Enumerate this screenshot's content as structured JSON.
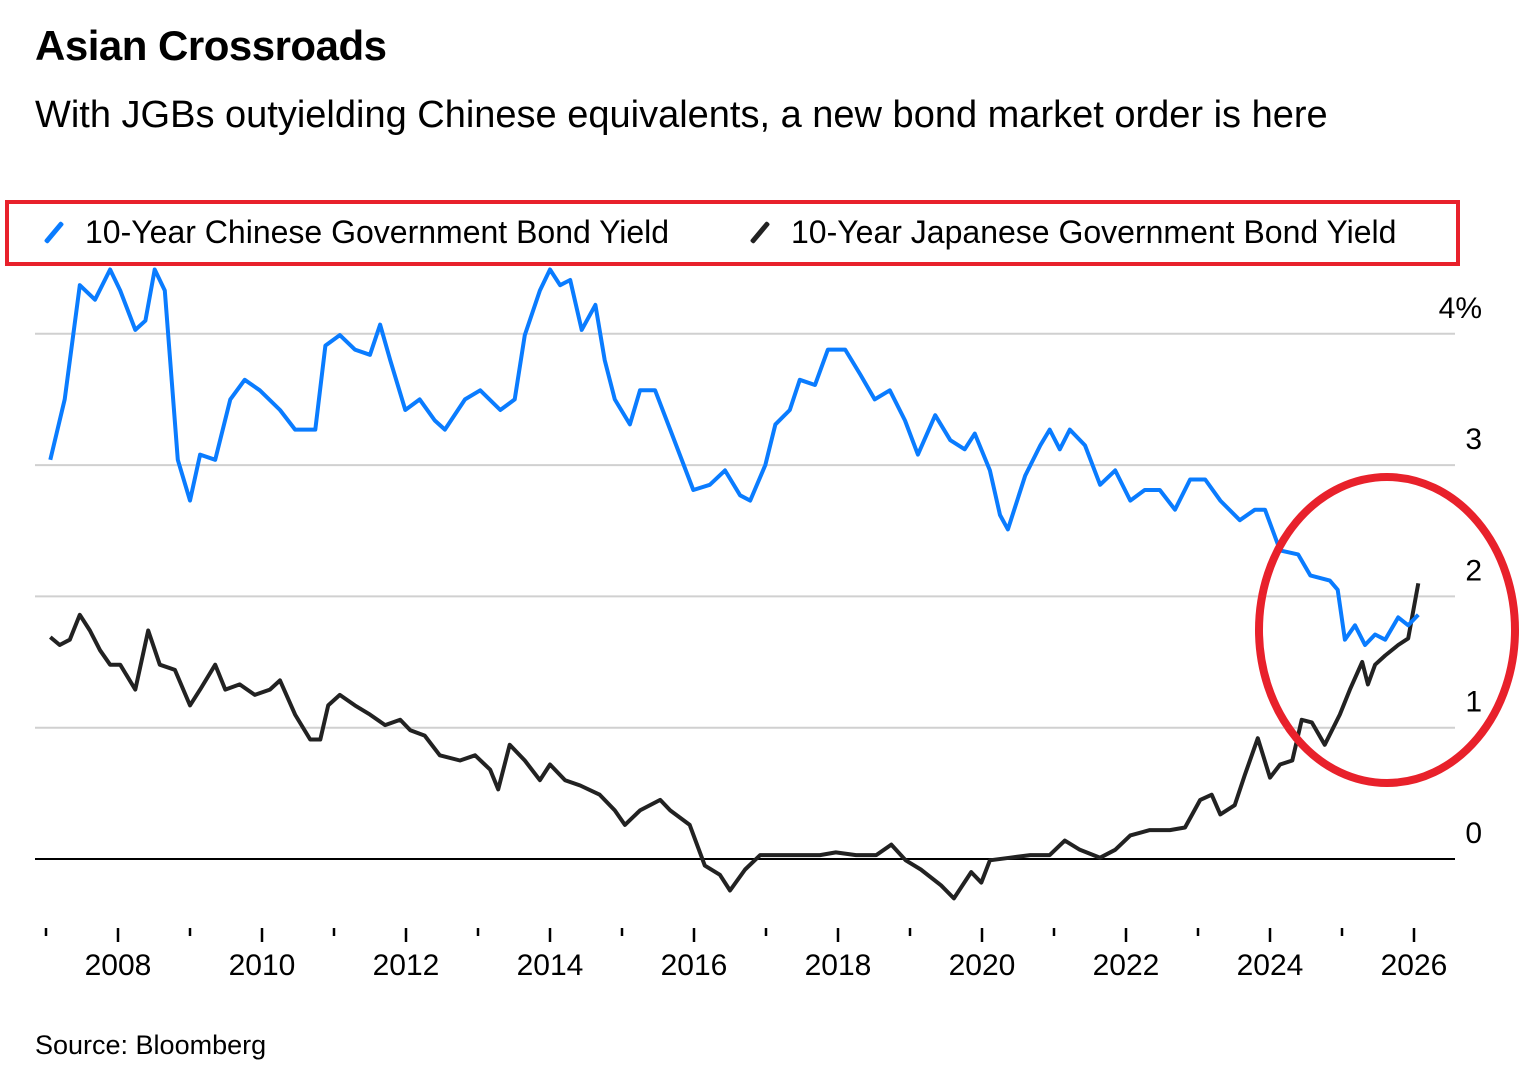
{
  "title": "Asian Crossroads",
  "subtitle": "With JGBs outyielding Chinese equivalents, a new bond market order is here",
  "source": "Source: Bloomberg",
  "colors": {
    "china": "#0a7cff",
    "japan": "#222222",
    "annotation": "#e8212b",
    "grid": "#d0d0d0"
  },
  "chart_data": {
    "type": "line",
    "title": "Asian Crossroads",
    "legend_position": "top",
    "grid": true,
    "xlim": [
      2006.85,
      2026.5
    ],
    "ylim": [
      -0.45,
      4.5
    ],
    "x_ticks": [
      "2008",
      "2010",
      "2012",
      "2014",
      "2016",
      "2018",
      "2020",
      "2022",
      "2024",
      "2026"
    ],
    "y_ticks": [
      {
        "value": 4,
        "label": "4%"
      },
      {
        "value": 3,
        "label": "3"
      },
      {
        "value": 2,
        "label": "2"
      },
      {
        "value": 1,
        "label": "1"
      },
      {
        "value": 0,
        "label": "0"
      }
    ],
    "series": [
      {
        "name": "10-Year Chinese Government Bond Yield",
        "color": "#0a7cff",
        "points": [
          [
            2007.06,
            3.04
          ],
          [
            2007.26,
            3.5
          ],
          [
            2007.47,
            4.37
          ],
          [
            2007.68,
            4.26
          ],
          [
            2007.89,
            4.49
          ],
          [
            2008.03,
            4.33
          ],
          [
            2008.24,
            4.03
          ],
          [
            2008.38,
            4.1
          ],
          [
            2008.51,
            4.49
          ],
          [
            2008.65,
            4.33
          ],
          [
            2008.83,
            3.04
          ],
          [
            2009.0,
            2.73
          ],
          [
            2009.14,
            3.08
          ],
          [
            2009.35,
            3.04
          ],
          [
            2009.56,
            3.5
          ],
          [
            2009.76,
            3.65
          ],
          [
            2009.97,
            3.57
          ],
          [
            2010.25,
            3.42
          ],
          [
            2010.46,
            3.27
          ],
          [
            2010.74,
            3.27
          ],
          [
            2010.88,
            3.91
          ],
          [
            2011.08,
            3.99
          ],
          [
            2011.29,
            3.88
          ],
          [
            2011.5,
            3.84
          ],
          [
            2011.64,
            4.07
          ],
          [
            2011.78,
            3.8
          ],
          [
            2011.99,
            3.42
          ],
          [
            2012.19,
            3.5
          ],
          [
            2012.4,
            3.34
          ],
          [
            2012.54,
            3.27
          ],
          [
            2012.82,
            3.5
          ],
          [
            2013.03,
            3.57
          ],
          [
            2013.31,
            3.42
          ],
          [
            2013.51,
            3.5
          ],
          [
            2013.65,
            3.99
          ],
          [
            2013.86,
            4.33
          ],
          [
            2014.0,
            4.49
          ],
          [
            2014.14,
            4.37
          ],
          [
            2014.28,
            4.41
          ],
          [
            2014.44,
            4.03
          ],
          [
            2014.63,
            4.22
          ],
          [
            2014.76,
            3.8
          ],
          [
            2014.9,
            3.5
          ],
          [
            2015.11,
            3.31
          ],
          [
            2015.25,
            3.57
          ],
          [
            2015.46,
            3.57
          ],
          [
            2015.67,
            3.27
          ],
          [
            2015.99,
            2.81
          ],
          [
            2016.22,
            2.85
          ],
          [
            2016.43,
            2.96
          ],
          [
            2016.64,
            2.77
          ],
          [
            2016.78,
            2.73
          ],
          [
            2016.99,
            3.0
          ],
          [
            2017.13,
            3.31
          ],
          [
            2017.33,
            3.42
          ],
          [
            2017.47,
            3.65
          ],
          [
            2017.68,
            3.61
          ],
          [
            2017.86,
            3.88
          ],
          [
            2018.1,
            3.88
          ],
          [
            2018.31,
            3.69
          ],
          [
            2018.51,
            3.5
          ],
          [
            2018.72,
            3.57
          ],
          [
            2018.93,
            3.34
          ],
          [
            2019.11,
            3.08
          ],
          [
            2019.35,
            3.38
          ],
          [
            2019.56,
            3.19
          ],
          [
            2019.76,
            3.12
          ],
          [
            2019.9,
            3.24
          ],
          [
            2020.11,
            2.96
          ],
          [
            2020.25,
            2.62
          ],
          [
            2020.36,
            2.51
          ],
          [
            2020.6,
            2.92
          ],
          [
            2020.81,
            3.15
          ],
          [
            2020.94,
            3.27
          ],
          [
            2021.08,
            3.12
          ],
          [
            2021.22,
            3.27
          ],
          [
            2021.43,
            3.15
          ],
          [
            2021.64,
            2.85
          ],
          [
            2021.85,
            2.96
          ],
          [
            2022.06,
            2.73
          ],
          [
            2022.26,
            2.81
          ],
          [
            2022.47,
            2.81
          ],
          [
            2022.68,
            2.66
          ],
          [
            2022.89,
            2.89
          ],
          [
            2023.1,
            2.89
          ],
          [
            2023.31,
            2.73
          ],
          [
            2023.58,
            2.58
          ],
          [
            2023.79,
            2.66
          ],
          [
            2023.93,
            2.66
          ],
          [
            2024.14,
            2.35
          ],
          [
            2024.39,
            2.32
          ],
          [
            2024.56,
            2.16
          ],
          [
            2024.83,
            2.12
          ],
          [
            2024.94,
            2.05
          ],
          [
            2025.04,
            1.67
          ],
          [
            2025.18,
            1.78
          ],
          [
            2025.32,
            1.63
          ],
          [
            2025.46,
            1.71
          ],
          [
            2025.6,
            1.67
          ],
          [
            2025.78,
            1.84
          ],
          [
            2025.92,
            1.78
          ],
          [
            2026.06,
            1.86
          ]
        ]
      },
      {
        "name": "10-Year Japanese Government Bond Yield",
        "color": "#222222",
        "points": [
          [
            2007.06,
            1.69
          ],
          [
            2007.19,
            1.63
          ],
          [
            2007.33,
            1.67
          ],
          [
            2007.47,
            1.86
          ],
          [
            2007.61,
            1.74
          ],
          [
            2007.75,
            1.59
          ],
          [
            2007.89,
            1.48
          ],
          [
            2008.03,
            1.48
          ],
          [
            2008.24,
            1.29
          ],
          [
            2008.42,
            1.74
          ],
          [
            2008.58,
            1.48
          ],
          [
            2008.79,
            1.44
          ],
          [
            2009.0,
            1.17
          ],
          [
            2009.14,
            1.29
          ],
          [
            2009.35,
            1.48
          ],
          [
            2009.49,
            1.29
          ],
          [
            2009.69,
            1.33
          ],
          [
            2009.9,
            1.25
          ],
          [
            2010.11,
            1.29
          ],
          [
            2010.25,
            1.36
          ],
          [
            2010.46,
            1.1
          ],
          [
            2010.67,
            0.91
          ],
          [
            2010.81,
            0.91
          ],
          [
            2010.92,
            1.17
          ],
          [
            2011.08,
            1.25
          ],
          [
            2011.29,
            1.17
          ],
          [
            2011.5,
            1.1
          ],
          [
            2011.71,
            1.02
          ],
          [
            2011.92,
            1.06
          ],
          [
            2012.06,
            0.98
          ],
          [
            2012.26,
            0.94
          ],
          [
            2012.47,
            0.79
          ],
          [
            2012.75,
            0.75
          ],
          [
            2012.96,
            0.79
          ],
          [
            2013.17,
            0.68
          ],
          [
            2013.28,
            0.53
          ],
          [
            2013.44,
            0.87
          ],
          [
            2013.65,
            0.75
          ],
          [
            2013.86,
            0.6
          ],
          [
            2014.0,
            0.72
          ],
          [
            2014.21,
            0.6
          ],
          [
            2014.42,
            0.56
          ],
          [
            2014.69,
            0.49
          ],
          [
            2014.9,
            0.37
          ],
          [
            2015.04,
            0.26
          ],
          [
            2015.25,
            0.37
          ],
          [
            2015.53,
            0.45
          ],
          [
            2015.67,
            0.37
          ],
          [
            2015.94,
            0.26
          ],
          [
            2016.15,
            -0.05
          ],
          [
            2016.36,
            -0.12
          ],
          [
            2016.5,
            -0.24
          ],
          [
            2016.71,
            -0.08
          ],
          [
            2016.92,
            0.03
          ],
          [
            2017.19,
            0.03
          ],
          [
            2017.47,
            0.03
          ],
          [
            2017.75,
            0.03
          ],
          [
            2017.97,
            0.05
          ],
          [
            2018.25,
            0.03
          ],
          [
            2018.53,
            0.03
          ],
          [
            2018.74,
            0.11
          ],
          [
            2018.94,
            -0.01
          ],
          [
            2019.15,
            -0.08
          ],
          [
            2019.43,
            -0.2
          ],
          [
            2019.61,
            -0.3
          ],
          [
            2019.85,
            -0.1
          ],
          [
            2019.99,
            -0.18
          ],
          [
            2020.11,
            -0.01
          ],
          [
            2020.39,
            0.01
          ],
          [
            2020.67,
            0.03
          ],
          [
            2020.94,
            0.03
          ],
          [
            2021.15,
            0.14
          ],
          [
            2021.36,
            0.07
          ],
          [
            2021.64,
            0.01
          ],
          [
            2021.85,
            0.07
          ],
          [
            2022.06,
            0.18
          ],
          [
            2022.33,
            0.22
          ],
          [
            2022.61,
            0.22
          ],
          [
            2022.82,
            0.24
          ],
          [
            2023.03,
            0.45
          ],
          [
            2023.19,
            0.49
          ],
          [
            2023.31,
            0.34
          ],
          [
            2023.51,
            0.41
          ],
          [
            2023.65,
            0.64
          ],
          [
            2023.83,
            0.92
          ],
          [
            2024.0,
            0.62
          ],
          [
            2024.14,
            0.72
          ],
          [
            2024.31,
            0.75
          ],
          [
            2024.44,
            1.06
          ],
          [
            2024.58,
            1.04
          ],
          [
            2024.76,
            0.87
          ],
          [
            2024.97,
            1.1
          ],
          [
            2025.11,
            1.29
          ],
          [
            2025.28,
            1.5
          ],
          [
            2025.36,
            1.33
          ],
          [
            2025.46,
            1.48
          ],
          [
            2025.6,
            1.55
          ],
          [
            2025.78,
            1.63
          ],
          [
            2025.92,
            1.68
          ],
          [
            2026.06,
            2.1
          ]
        ]
      }
    ]
  }
}
